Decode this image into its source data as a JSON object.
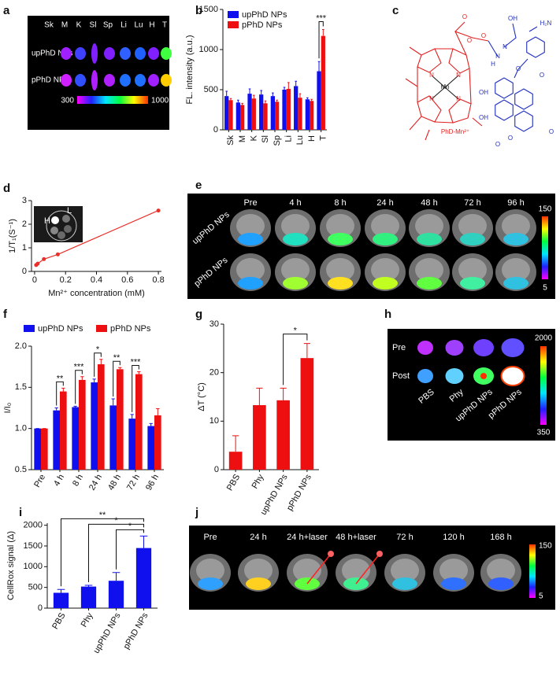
{
  "chart_data": [
    {
      "label": "b",
      "type": "bar",
      "categories": [
        "Sk",
        "M",
        "K",
        "Sl",
        "Sp",
        "Li",
        "Lu",
        "H",
        "T"
      ],
      "ylabel": "FL. intensity (a.u.)",
      "ylim": [
        0,
        1500
      ],
      "yticks": [
        0,
        500,
        1000,
        1500
      ],
      "legend": "upper left",
      "series": [
        {
          "name": "upPhD NPs",
          "color": "#1010ee",
          "values": [
            420,
            340,
            450,
            440,
            420,
            500,
            545,
            380,
            730
          ],
          "errors": [
            60,
            30,
            60,
            50,
            40,
            30,
            60,
            20,
            120
          ]
        },
        {
          "name": "pPhD NPs",
          "color": "#ee1010",
          "values": [
            370,
            310,
            390,
            330,
            350,
            510,
            400,
            360,
            1170
          ],
          "errors": [
            20,
            20,
            40,
            30,
            20,
            80,
            50,
            20,
            80
          ]
        }
      ],
      "annotations": [
        "***"
      ]
    },
    {
      "label": "d",
      "type": "line",
      "x": [
        0.01,
        0.02,
        0.06,
        0.15,
        0.8
      ],
      "values": [
        0.27,
        0.33,
        0.52,
        0.72,
        2.58
      ],
      "color": "#e8312a",
      "xlabel": "Mn²⁺ concentration (mM)",
      "ylabel": "1/T₁(S⁻¹)",
      "xlim": [
        -0.02,
        0.82
      ],
      "xticks": [
        0,
        0.2,
        0.4,
        0.6,
        0.8
      ],
      "ylim": [
        0,
        3
      ],
      "yticks": [
        0,
        1,
        2,
        3
      ],
      "inset_labels": [
        "L",
        "H"
      ]
    },
    {
      "label": "f",
      "type": "bar",
      "categories": [
        "Pre",
        "4 h",
        "8 h",
        "24 h",
        "48 h",
        "72 h",
        "96 h"
      ],
      "ylabel": "I/I₀",
      "ylim": [
        0.5,
        2.0
      ],
      "yticks": [
        0.5,
        {
          "value": 1,
          "label": "1.0"
        },
        1.5,
        {
          "value": 2,
          "label": "2.0"
        }
      ],
      "legend": "top",
      "series": [
        {
          "name": "upPhD NPs",
          "color": "#1010ee",
          "values": [
            1,
            1.22,
            1.26,
            1.56,
            1.28,
            1.12,
            1.03
          ],
          "errors": [
            0,
            0.03,
            0.01,
            0.04,
            0.08,
            0.05,
            0.03
          ]
        },
        {
          "name": "pPhD NPs",
          "color": "#ee1010",
          "values": [
            1,
            1.45,
            1.59,
            1.78,
            1.72,
            1.66,
            1.16
          ],
          "errors": [
            0,
            0.04,
            0.04,
            0.06,
            0.02,
            0.03,
            0.08
          ]
        }
      ],
      "annotations": [
        "**",
        "***",
        "*",
        "**",
        "***"
      ]
    },
    {
      "label": "g",
      "type": "bar",
      "categories": [
        "PBS",
        "Phy",
        "upPhD NPs",
        "pPhD NPs"
      ],
      "values": [
        3.7,
        13.3,
        14.3,
        23.0
      ],
      "errors": [
        3.3,
        3.5,
        2.5,
        3.0
      ],
      "color": "#ee1010",
      "ylabel": "ΔT (°C)",
      "ylim": [
        0,
        30
      ],
      "yticks": [
        0,
        10,
        20,
        30
      ],
      "annotations": [
        "*"
      ]
    },
    {
      "label": "i",
      "type": "bar",
      "categories": [
        "PBS",
        "Phy",
        "upPhD NPs",
        "pPhD NPs"
      ],
      "values": [
        370,
        520,
        660,
        1450
      ],
      "errors": [
        80,
        30,
        200,
        290
      ],
      "color": "#1010ee",
      "ylabel": "CellRox signal (Δ)",
      "ylim": [
        0,
        2050
      ],
      "yticks": [
        0,
        500,
        1000,
        1500,
        2000
      ],
      "annotations": [
        "**",
        "*",
        "*"
      ]
    }
  ],
  "images": [
    {
      "label": "a",
      "columns": [
        "Sk",
        "M",
        "K",
        "Sl",
        "Sp",
        "Li",
        "Lu",
        "H",
        "T"
      ],
      "rows": [
        "upPhD NPs",
        "pPhD NPs"
      ],
      "colorbar": [
        300,
        1000
      ]
    },
    {
      "label": "c",
      "atoms": [
        "O",
        "O",
        "O",
        "N",
        "N",
        "N",
        "N",
        "Mn",
        "N",
        "N",
        "H",
        "OH",
        "O",
        "H₂N",
        "OH",
        "OH",
        "O",
        "O",
        "O",
        "O"
      ],
      "caption": "PhD-Mn²⁺"
    },
    {
      "label": "e",
      "columns": [
        "Pre",
        "4 h",
        "8 h",
        "24 h",
        "48 h",
        "72 h",
        "96 h"
      ],
      "rows": [
        "upPhD NPs",
        "pPhD NPs"
      ],
      "colorbar": [
        150,
        5
      ]
    },
    {
      "label": "h",
      "rows": [
        "Pre",
        "Post"
      ],
      "columns": [
        "PBS",
        "Phy",
        "upPhD NPs",
        "pPhD NPs"
      ],
      "colorbar": [
        2000,
        350
      ]
    },
    {
      "label": "j",
      "columns": [
        "Pre",
        "24 h",
        "24 h+laser",
        "48 h+laser",
        "72 h",
        "120 h",
        "168 h"
      ],
      "colorbar": [
        150,
        5
      ]
    }
  ]
}
